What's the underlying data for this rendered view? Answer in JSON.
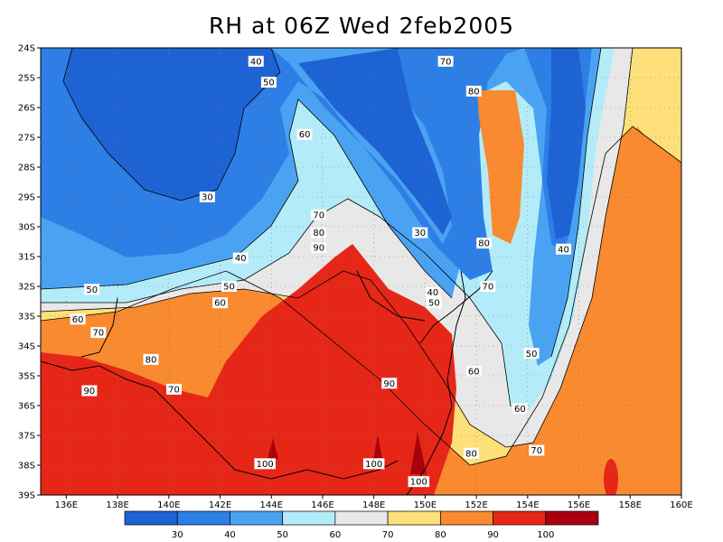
{
  "title": "RH at 06Z Wed 2feb2005",
  "map": {
    "lon_range": [
      135,
      160
    ],
    "lat_range": [
      -39,
      -24
    ],
    "x_ticks": [
      {
        "value": 136,
        "label": "136E"
      },
      {
        "value": 138,
        "label": "138E"
      },
      {
        "value": 140,
        "label": "140E"
      },
      {
        "value": 142,
        "label": "142E"
      },
      {
        "value": 144,
        "label": "144E"
      },
      {
        "value": 146,
        "label": "146E"
      },
      {
        "value": 148,
        "label": "148E"
      },
      {
        "value": 150,
        "label": "150E"
      },
      {
        "value": 152,
        "label": "152E"
      },
      {
        "value": 154,
        "label": "154E"
      },
      {
        "value": 156,
        "label": "156E"
      },
      {
        "value": 158,
        "label": "158E"
      },
      {
        "value": 160,
        "label": "160E"
      }
    ],
    "y_ticks": [
      {
        "value": -24,
        "label": "24S"
      },
      {
        "value": -25,
        "label": "25S"
      },
      {
        "value": -26,
        "label": "26S"
      },
      {
        "value": -27,
        "label": "27S"
      },
      {
        "value": -28,
        "label": "28S"
      },
      {
        "value": -29,
        "label": "29S"
      },
      {
        "value": -30,
        "label": "30S"
      },
      {
        "value": -31,
        "label": "31S"
      },
      {
        "value": -32,
        "label": "32S"
      },
      {
        "value": -33,
        "label": "33S"
      },
      {
        "value": -34,
        "label": "34S"
      },
      {
        "value": -35,
        "label": "35S"
      },
      {
        "value": -36,
        "label": "36S"
      },
      {
        "value": -37,
        "label": "37S"
      },
      {
        "value": -38,
        "label": "38S"
      },
      {
        "value": -39,
        "label": "39S"
      }
    ],
    "grid": "dotted",
    "contour_labels": [
      {
        "text": "40",
        "lon": 143.4,
        "lat": -24.45
      },
      {
        "text": "50",
        "lon": 143.9,
        "lat": -25.15
      },
      {
        "text": "70",
        "lon": 150.8,
        "lat": -24.45
      },
      {
        "text": "80",
        "lon": 151.9,
        "lat": -25.45
      },
      {
        "text": "60",
        "lon": 145.3,
        "lat": -26.9
      },
      {
        "text": "30",
        "lon": 141.5,
        "lat": -29.0
      },
      {
        "text": "30",
        "lon": 149.8,
        "lat": -30.2
      },
      {
        "text": "70",
        "lon": 145.85,
        "lat": -29.6
      },
      {
        "text": "80",
        "lon": 145.85,
        "lat": -30.2
      },
      {
        "text": "90",
        "lon": 145.85,
        "lat": -30.7
      },
      {
        "text": "80",
        "lon": 152.3,
        "lat": -30.55
      },
      {
        "text": "40",
        "lon": 155.4,
        "lat": -30.75
      },
      {
        "text": "40",
        "lon": 142.8,
        "lat": -31.05
      },
      {
        "text": "50",
        "lon": 137.0,
        "lat": -32.1
      },
      {
        "text": "50",
        "lon": 142.35,
        "lat": -32.0
      },
      {
        "text": "60",
        "lon": 142.0,
        "lat": -32.55
      },
      {
        "text": "40",
        "lon": 150.3,
        "lat": -32.2
      },
      {
        "text": "50",
        "lon": 150.35,
        "lat": -32.55
      },
      {
        "text": "70",
        "lon": 152.45,
        "lat": -32.0
      },
      {
        "text": "60",
        "lon": 136.45,
        "lat": -33.1
      },
      {
        "text": "70",
        "lon": 137.25,
        "lat": -33.55
      },
      {
        "text": "50",
        "lon": 154.15,
        "lat": -34.25
      },
      {
        "text": "80",
        "lon": 139.3,
        "lat": -34.45
      },
      {
        "text": "60",
        "lon": 151.9,
        "lat": -34.85
      },
      {
        "text": "90",
        "lon": 136.9,
        "lat": -35.5
      },
      {
        "text": "70",
        "lon": 140.2,
        "lat": -35.45
      },
      {
        "text": "90",
        "lon": 148.6,
        "lat": -35.25
      },
      {
        "text": "60",
        "lon": 153.7,
        "lat": -36.1
      },
      {
        "text": "70",
        "lon": 154.35,
        "lat": -37.5
      },
      {
        "text": "80",
        "lon": 151.8,
        "lat": -37.6
      },
      {
        "text": "100",
        "lon": 143.75,
        "lat": -37.95
      },
      {
        "text": "100",
        "lon": 148.0,
        "lat": -37.95
      },
      {
        "text": "100",
        "lon": 149.75,
        "lat": -38.55
      }
    ]
  },
  "colorbar": {
    "colors": [
      "#1e63d4",
      "#2d7fe6",
      "#4aa3f2",
      "#b3ecf8",
      "#e8e8e8",
      "#fde07a",
      "#f98a2f",
      "#e62718",
      "#a8000e"
    ],
    "labels": [
      "30",
      "40",
      "50",
      "60",
      "70",
      "80",
      "90",
      "100"
    ]
  }
}
